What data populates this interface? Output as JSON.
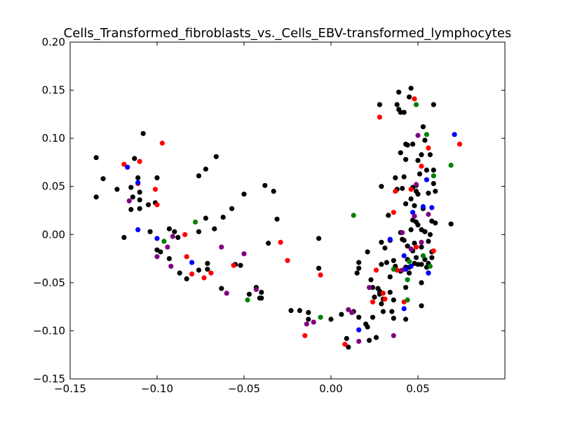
{
  "chart_data": {
    "type": "scatter",
    "title": "Cells_Transformed_fibroblasts_vs._Cells_EBV-transformed_lymphocytes",
    "xlabel": "",
    "ylabel": "",
    "xlim": [
      -0.15,
      0.1
    ],
    "ylim": [
      -0.15,
      0.2
    ],
    "xticks": [
      -0.15,
      -0.1,
      -0.05,
      0.0,
      0.05
    ],
    "xtick_labels": [
      "−0.15",
      "−0.10",
      "−0.05",
      "0.00",
      "0.05"
    ],
    "yticks": [
      -0.15,
      -0.1,
      -0.05,
      0.0,
      0.05,
      0.1,
      0.15,
      0.2
    ],
    "ytick_labels": [
      "−0.15",
      "−0.10",
      "−0.05",
      "0.00",
      "0.05",
      "0.10",
      "0.15",
      "0.20"
    ],
    "grid": false,
    "legend": "none",
    "series": [
      {
        "color": "#000000",
        "points": [
          [
            -0.135,
            0.08
          ],
          [
            -0.131,
            0.058
          ],
          [
            -0.135,
            0.039
          ],
          [
            -0.123,
            0.047
          ],
          [
            -0.115,
            0.049
          ],
          [
            -0.113,
            0.079
          ],
          [
            -0.108,
            0.105
          ],
          [
            -0.111,
            0.059
          ],
          [
            -0.11,
            0.044
          ],
          [
            -0.114,
            0.039
          ],
          [
            -0.11,
            0.036
          ],
          [
            -0.115,
            0.026
          ],
          [
            -0.11,
            0.027
          ],
          [
            -0.105,
            0.031
          ],
          [
            -0.101,
            0.033
          ],
          [
            -0.1,
            0.059
          ],
          [
            -0.119,
            -0.003
          ],
          [
            -0.104,
            0.003
          ],
          [
            -0.1,
            -0.016
          ],
          [
            -0.098,
            -0.018
          ],
          [
            -0.093,
            0.006
          ],
          [
            -0.09,
            0.003
          ],
          [
            -0.088,
            -0.003
          ],
          [
            -0.093,
            -0.025
          ],
          [
            -0.087,
            -0.04
          ],
          [
            -0.083,
            -0.046
          ],
          [
            -0.076,
            0.061
          ],
          [
            -0.072,
            0.068
          ],
          [
            -0.066,
            0.081
          ],
          [
            -0.067,
            0.006
          ],
          [
            -0.072,
            0.017
          ],
          [
            -0.076,
            0.003
          ],
          [
            -0.071,
            -0.03
          ],
          [
            -0.071,
            -0.036
          ],
          [
            -0.076,
            -0.037
          ],
          [
            -0.062,
            0.018
          ],
          [
            -0.057,
            0.027
          ],
          [
            -0.05,
            0.042
          ],
          [
            -0.063,
            -0.056
          ],
          [
            -0.055,
            -0.031
          ],
          [
            -0.052,
            -0.032
          ],
          [
            -0.047,
            -0.062
          ],
          [
            -0.04,
            -0.06
          ],
          [
            -0.043,
            -0.055
          ],
          [
            -0.041,
            -0.066
          ],
          [
            -0.04,
            -0.066
          ],
          [
            -0.038,
            0.051
          ],
          [
            -0.033,
            0.045
          ],
          [
            -0.036,
            -0.009
          ],
          [
            -0.031,
            0.016
          ],
          [
            -0.023,
            -0.079
          ],
          [
            -0.018,
            -0.079
          ],
          [
            -0.013,
            -0.081
          ],
          [
            -0.013,
            -0.088
          ],
          [
            -0.007,
            -0.004
          ],
          [
            -0.007,
            -0.035
          ],
          [
            0.0,
            -0.088
          ],
          [
            0.006,
            -0.083
          ],
          [
            0.009,
            -0.108
          ],
          [
            0.01,
            -0.117
          ],
          [
            0.013,
            -0.08
          ],
          [
            0.016,
            -0.035
          ],
          [
            0.016,
            -0.029
          ],
          [
            0.015,
            -0.04
          ],
          [
            0.016,
            -0.086
          ],
          [
            0.021,
            -0.018
          ],
          [
            0.02,
            -0.093
          ],
          [
            0.021,
            -0.096
          ],
          [
            0.022,
            -0.11
          ],
          [
            0.023,
            -0.047
          ],
          [
            0.024,
            -0.055
          ],
          [
            0.024,
            -0.086
          ],
          [
            0.025,
            -0.065
          ],
          [
            0.026,
            -0.107
          ],
          [
            0.027,
            -0.056
          ],
          [
            0.028,
            -0.059
          ],
          [
            0.028,
            -0.062
          ],
          [
            0.028,
            0.135
          ],
          [
            0.029,
            -0.031
          ],
          [
            0.029,
            -0.008
          ],
          [
            0.029,
            -0.072
          ],
          [
            0.03,
            -0.067
          ],
          [
            0.03,
            -0.08
          ],
          [
            0.029,
            0.05
          ],
          [
            0.031,
            -0.014
          ],
          [
            0.032,
            -0.029
          ],
          [
            0.033,
            0.02
          ],
          [
            0.034,
            -0.006
          ],
          [
            0.034,
            -0.044
          ],
          [
            0.034,
            -0.06
          ],
          [
            0.036,
            -0.068
          ],
          [
            0.036,
            -0.087
          ],
          [
            0.035,
            -0.08
          ],
          [
            0.036,
            -0.027
          ],
          [
            0.037,
            -0.033
          ],
          [
            0.037,
            0.059
          ],
          [
            0.038,
            0.047
          ],
          [
            0.038,
            0.135
          ],
          [
            0.039,
            0.13
          ],
          [
            0.039,
            0.148
          ],
          [
            0.04,
            0.127
          ],
          [
            0.041,
            -0.005
          ],
          [
            0.04,
            0.002
          ],
          [
            0.04,
            0.085
          ],
          [
            0.04,
            -0.038
          ],
          [
            0.041,
            0.048
          ],
          [
            0.042,
            0.06
          ],
          [
            0.042,
            -0.006
          ],
          [
            0.042,
            0.127
          ],
          [
            0.043,
            0.094
          ],
          [
            0.043,
            0.078
          ],
          [
            0.043,
            0.032
          ],
          [
            0.043,
            -0.034
          ],
          [
            0.043,
            -0.055
          ],
          [
            0.043,
            -0.088
          ],
          [
            0.044,
            0.093
          ],
          [
            0.044,
            -0.012
          ],
          [
            0.044,
            -0.026
          ],
          [
            0.045,
            -0.04
          ],
          [
            0.045,
            -0.034
          ],
          [
            0.045,
            0.143
          ],
          [
            0.046,
            0.152
          ],
          [
            0.046,
            0.005
          ],
          [
            0.046,
            0.037
          ],
          [
            0.047,
            0.094
          ],
          [
            0.047,
            0.015
          ],
          [
            0.047,
            0.049
          ],
          [
            0.047,
            -0.017
          ],
          [
            0.048,
            -0.03
          ],
          [
            0.048,
            -0.009
          ],
          [
            0.048,
            0.03
          ],
          [
            0.049,
            0.051
          ],
          [
            0.049,
            0.045
          ],
          [
            0.049,
            0.013
          ],
          [
            0.049,
            -0.024
          ],
          [
            0.05,
            0.077
          ],
          [
            0.05,
            0.01
          ],
          [
            0.05,
            -0.031
          ],
          [
            0.05,
            0.042
          ],
          [
            0.051,
            0.063
          ],
          [
            0.052,
            0.083
          ],
          [
            0.052,
            -0.074
          ],
          [
            0.052,
            0.005
          ],
          [
            0.052,
            -0.013
          ],
          [
            0.052,
            -0.031
          ],
          [
            0.052,
            -0.05
          ],
          [
            0.053,
            0.112
          ],
          [
            0.053,
            0.027
          ],
          [
            0.054,
            0.003
          ],
          [
            0.054,
            0.098
          ],
          [
            0.054,
            0.003
          ],
          [
            0.054,
            -0.026
          ],
          [
            0.055,
            -0.034
          ],
          [
            0.055,
            0.067
          ],
          [
            0.056,
            -0.007
          ],
          [
            0.056,
            0.043
          ],
          [
            0.056,
            -0.03
          ],
          [
            0.057,
            0.083
          ],
          [
            0.057,
            0.0
          ],
          [
            0.058,
            0.014
          ],
          [
            0.058,
            -0.018
          ],
          [
            0.058,
            -0.024
          ],
          [
            0.059,
            0.135
          ],
          [
            0.059,
            0.053
          ],
          [
            0.059,
            0.067
          ],
          [
            0.06,
            0.012
          ],
          [
            0.06,
            0.045
          ],
          [
            0.069,
            0.011
          ],
          [
            0.056,
            -0.04
          ]
        ]
      },
      {
        "color": "#ff0000",
        "points": [
          [
            -0.119,
            0.073
          ],
          [
            -0.111,
            0.053
          ],
          [
            -0.11,
            0.076
          ],
          [
            -0.097,
            0.095
          ],
          [
            -0.101,
            0.047
          ],
          [
            -0.1,
            0.031
          ],
          [
            -0.084,
            0.0
          ],
          [
            -0.083,
            -0.023
          ],
          [
            -0.08,
            -0.041
          ],
          [
            -0.073,
            -0.045
          ],
          [
            -0.069,
            -0.04
          ],
          [
            -0.056,
            -0.032
          ],
          [
            -0.029,
            -0.008
          ],
          [
            -0.025,
            -0.027
          ],
          [
            -0.015,
            -0.105
          ],
          [
            -0.006,
            -0.042
          ],
          [
            0.008,
            -0.114
          ],
          [
            0.028,
            0.122
          ],
          [
            0.026,
            -0.037
          ],
          [
            0.024,
            -0.07
          ],
          [
            0.03,
            -0.061
          ],
          [
            0.031,
            -0.067
          ],
          [
            0.036,
            0.023
          ],
          [
            0.037,
            0.045
          ],
          [
            0.038,
            -0.037
          ],
          [
            0.042,
            -0.07
          ],
          [
            0.046,
            0.047
          ],
          [
            0.048,
            0.141
          ],
          [
            0.049,
            -0.013
          ],
          [
            0.052,
            0.071
          ],
          [
            0.056,
            0.09
          ],
          [
            0.059,
            -0.017
          ],
          [
            0.074,
            0.094
          ]
        ]
      },
      {
        "color": "#0000ff",
        "points": [
          [
            -0.117,
            0.07
          ],
          [
            -0.111,
            0.054
          ],
          [
            -0.111,
            0.005
          ],
          [
            -0.1,
            -0.004
          ],
          [
            -0.08,
            -0.029
          ],
          [
            0.016,
            -0.099
          ],
          [
            0.034,
            -0.005
          ],
          [
            0.042,
            -0.022
          ],
          [
            0.042,
            -0.077
          ],
          [
            0.043,
            -0.036
          ],
          [
            0.046,
            -0.033
          ],
          [
            0.047,
            0.023
          ],
          [
            0.053,
            0.029
          ],
          [
            0.055,
            0.057
          ],
          [
            0.056,
            -0.04
          ],
          [
            0.058,
            0.028
          ],
          [
            0.071,
            0.104
          ]
        ]
      },
      {
        "color": "#008000",
        "points": [
          [
            -0.096,
            -0.007
          ],
          [
            -0.078,
            0.013
          ],
          [
            -0.048,
            -0.068
          ],
          [
            -0.006,
            -0.086
          ],
          [
            0.013,
            0.02
          ],
          [
            0.036,
            -0.036
          ],
          [
            0.044,
            -0.047
          ],
          [
            0.044,
            -0.068
          ],
          [
            0.045,
            -0.028
          ],
          [
            0.049,
            0.135
          ],
          [
            0.053,
            -0.022
          ],
          [
            0.055,
            0.104
          ],
          [
            0.057,
            -0.033
          ],
          [
            0.059,
            0.061
          ],
          [
            0.069,
            0.072
          ]
        ]
      },
      {
        "color": "#800080",
        "points": [
          [
            -0.116,
            0.035
          ],
          [
            -0.1,
            -0.023
          ],
          [
            -0.094,
            -0.013
          ],
          [
            -0.092,
            -0.033
          ],
          [
            -0.091,
            -0.002
          ],
          [
            -0.063,
            -0.013
          ],
          [
            -0.06,
            -0.061
          ],
          [
            -0.05,
            -0.02
          ],
          [
            -0.043,
            -0.057
          ],
          [
            -0.014,
            -0.093
          ],
          [
            -0.01,
            -0.091
          ],
          [
            0.01,
            -0.078
          ],
          [
            0.012,
            -0.081
          ],
          [
            0.016,
            -0.111
          ],
          [
            0.022,
            -0.055
          ],
          [
            0.036,
            -0.105
          ],
          [
            0.041,
            -0.037
          ],
          [
            0.041,
            0.002
          ],
          [
            0.046,
            -0.015
          ],
          [
            0.048,
            0.019
          ],
          [
            0.049,
            0.052
          ],
          [
            0.05,
            0.103
          ],
          [
            0.052,
            -0.008
          ],
          [
            0.056,
            0.021
          ]
        ]
      }
    ]
  }
}
